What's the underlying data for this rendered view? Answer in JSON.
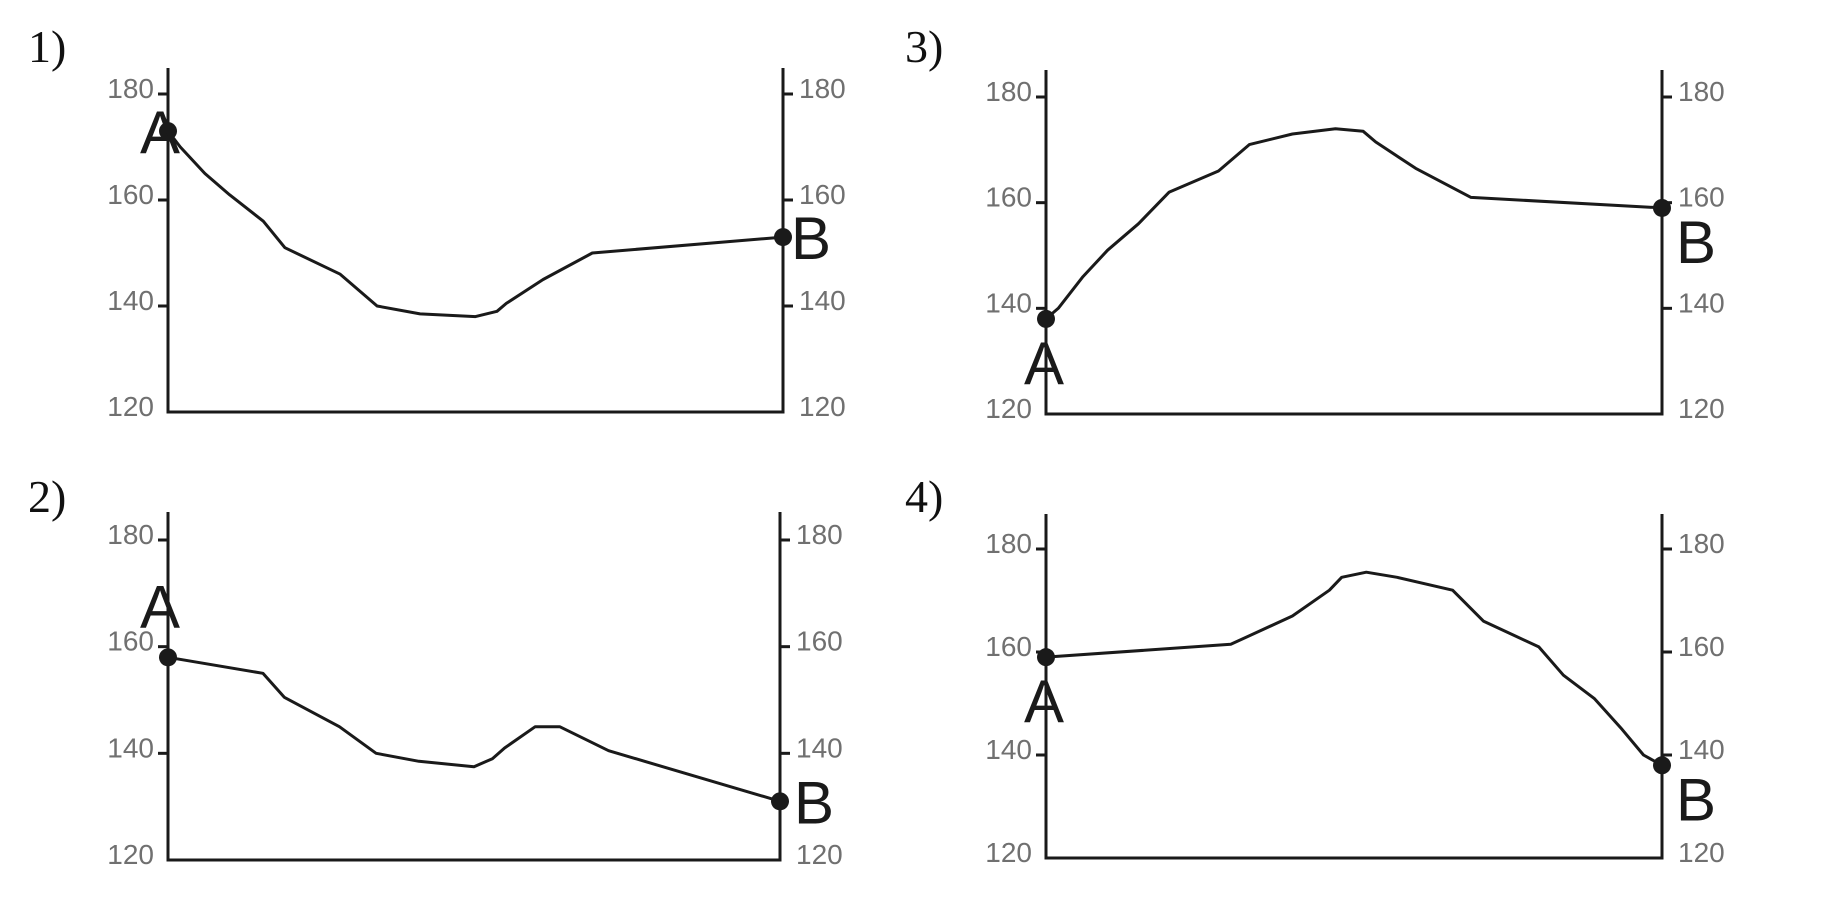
{
  "panels": [
    {
      "number": "1)",
      "left_ticks": [
        "180",
        "160",
        "140",
        "120"
      ],
      "right_ticks": [
        "180",
        "160",
        "140",
        "120"
      ],
      "label_a": "A",
      "label_b": "B",
      "profile": [
        [
          0,
          173
        ],
        [
          0.02,
          170
        ],
        [
          0.06,
          165
        ],
        [
          0.1,
          161
        ],
        [
          0.155,
          156
        ],
        [
          0.19,
          151
        ],
        [
          0.28,
          146
        ],
        [
          0.34,
          140
        ],
        [
          0.41,
          138.5
        ],
        [
          0.5,
          138
        ],
        [
          0.535,
          139
        ],
        [
          0.55,
          140.5
        ],
        [
          0.61,
          145
        ],
        [
          0.69,
          150
        ],
        [
          1,
          153
        ]
      ]
    },
    {
      "number": "2)",
      "left_ticks": [
        "180",
        "160",
        "140",
        "120"
      ],
      "right_ticks": [
        "180",
        "160",
        "140",
        "120"
      ],
      "label_a": "A",
      "label_b": "B",
      "profile": [
        [
          0,
          158
        ],
        [
          0.155,
          155
        ],
        [
          0.19,
          150.5
        ],
        [
          0.28,
          145
        ],
        [
          0.34,
          140
        ],
        [
          0.41,
          138.5
        ],
        [
          0.5,
          137.5
        ],
        [
          0.53,
          139
        ],
        [
          0.55,
          141
        ],
        [
          0.6,
          145
        ],
        [
          0.64,
          145
        ],
        [
          0.72,
          140.5
        ],
        [
          1,
          131
        ]
      ]
    },
    {
      "number": "3)",
      "left_ticks": [
        "180",
        "160",
        "140",
        "120"
      ],
      "right_ticks": [
        "180",
        "160",
        "140",
        "120"
      ],
      "label_a": "A",
      "label_b": "B",
      "profile": [
        [
          0,
          138
        ],
        [
          0.02,
          140
        ],
        [
          0.06,
          146
        ],
        [
          0.1,
          151
        ],
        [
          0.15,
          156
        ],
        [
          0.2,
          162
        ],
        [
          0.28,
          166
        ],
        [
          0.33,
          171
        ],
        [
          0.4,
          173
        ],
        [
          0.47,
          174
        ],
        [
          0.515,
          173.5
        ],
        [
          0.535,
          171.5
        ],
        [
          0.6,
          166.5
        ],
        [
          0.69,
          161
        ],
        [
          1,
          159
        ]
      ]
    },
    {
      "number": "4)",
      "left_ticks": [
        "180",
        "160",
        "140",
        "120"
      ],
      "right_ticks": [
        "180",
        "160",
        "140",
        "120"
      ],
      "label_a": "A",
      "label_b": "B",
      "profile": [
        [
          0,
          159
        ],
        [
          0.3,
          161.5
        ],
        [
          0.4,
          167
        ],
        [
          0.46,
          172
        ],
        [
          0.48,
          174.5
        ],
        [
          0.52,
          175.5
        ],
        [
          0.57,
          174.5
        ],
        [
          0.66,
          172
        ],
        [
          0.71,
          166
        ],
        [
          0.8,
          161
        ],
        [
          0.84,
          155.5
        ],
        [
          0.89,
          151
        ],
        [
          0.935,
          145
        ],
        [
          0.97,
          140
        ],
        [
          1,
          138
        ]
      ]
    }
  ]
}
